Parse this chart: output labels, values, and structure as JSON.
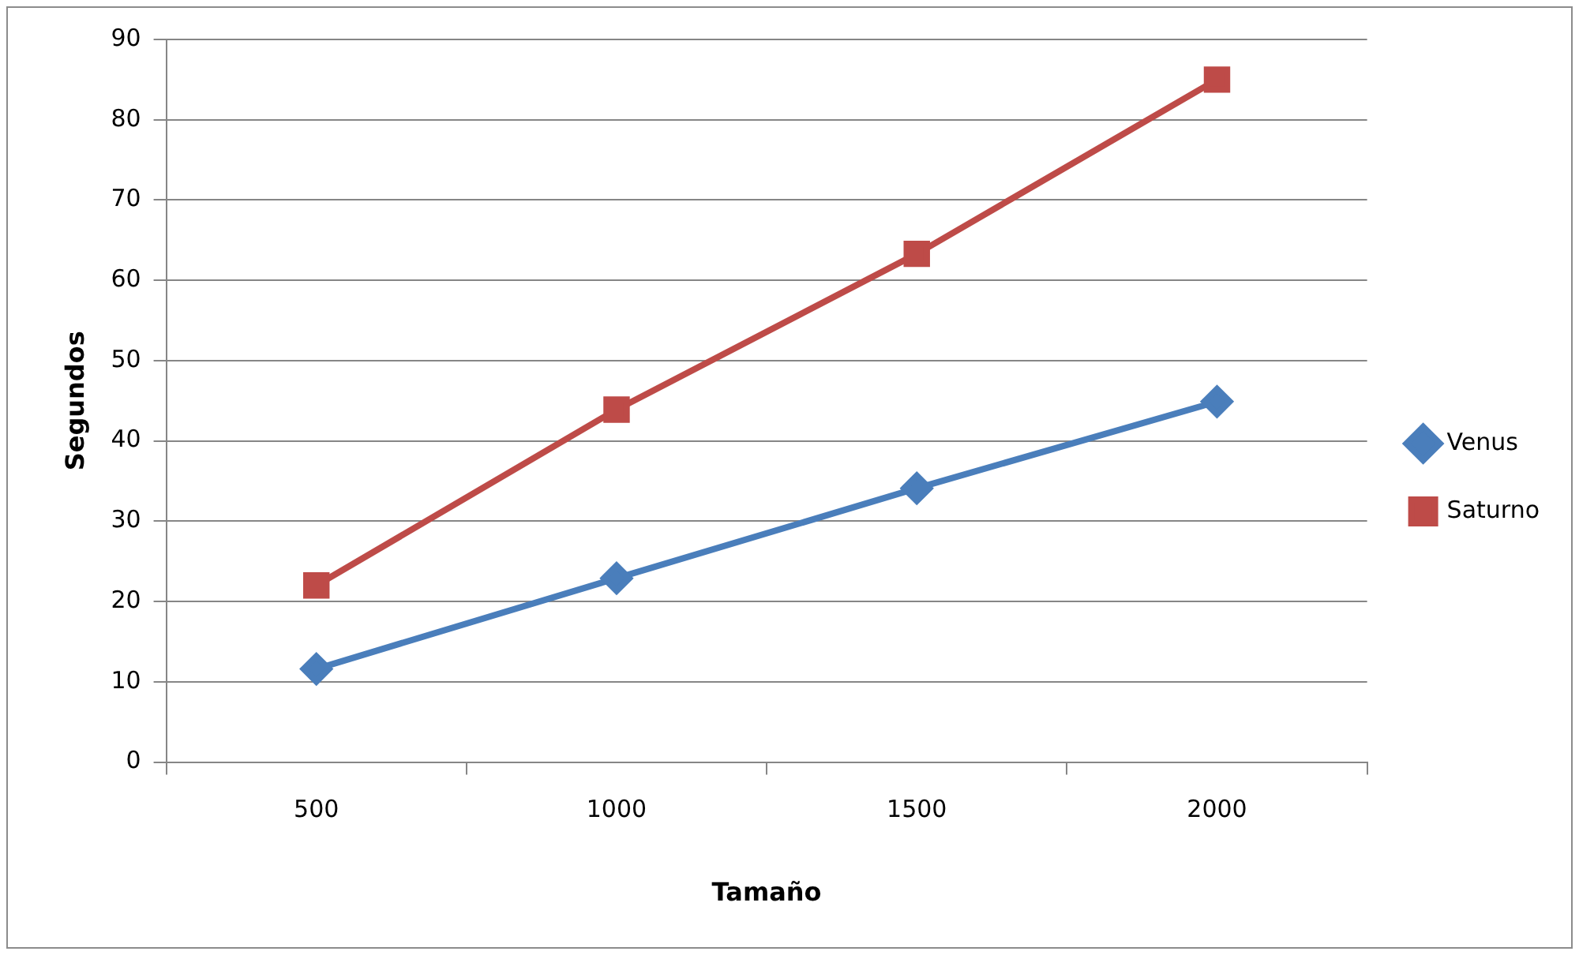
{
  "chart_data": {
    "type": "line",
    "xlabel": "Tamaño",
    "ylabel": "Segundos",
    "categories": [
      "500",
      "1000",
      "1500",
      "2000"
    ],
    "series": [
      {
        "name": "Venus",
        "color": "#4a7ebb",
        "marker": "diamond",
        "values": [
          11.6,
          22.9,
          34.1,
          44.9
        ]
      },
      {
        "name": "Saturno",
        "color": "#be4b48",
        "marker": "square",
        "values": [
          22,
          43.9,
          63.3,
          85
        ]
      }
    ],
    "ylim": [
      0,
      90
    ],
    "yticks": [
      0,
      10,
      20,
      30,
      40,
      50,
      60,
      70,
      80,
      90
    ],
    "grid": "y",
    "legend": "right",
    "line_style": "solid"
  }
}
